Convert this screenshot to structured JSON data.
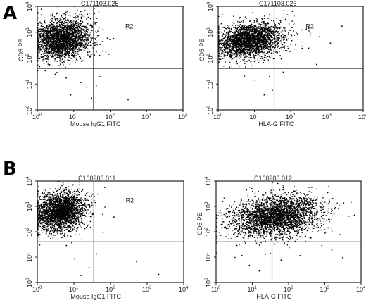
{
  "panels": [
    {
      "letter": "A"
    },
    {
      "letter": "B"
    }
  ],
  "chart_data": [
    {
      "type": "scatter",
      "panel": "A",
      "title": "C171103.025",
      "xlabel": "Mouse IgG1 FITC",
      "ylabel": "CD5 PE",
      "xscale": "log",
      "yscale": "log",
      "xlim": [
        1,
        10000
      ],
      "ylim": [
        1,
        10000
      ],
      "xticks": [
        "10",
        "10",
        "10",
        "10",
        "10"
      ],
      "yticks": [
        "10",
        "10",
        "10",
        "10",
        "10"
      ],
      "tick_exponents": [
        "0",
        "1",
        "2",
        "3",
        "4"
      ],
      "quadrant_gate": {
        "x": 35,
        "y": 40
      },
      "region_label": "R2",
      "cluster": {
        "x_center": 4.5,
        "y_center": 550,
        "x_spread_decades": 0.38,
        "y_spread_decades": 0.38,
        "points": 2600
      },
      "outliers": [
        [
          22,
          8
        ],
        [
          40,
          9
        ],
        [
          30,
          3
        ],
        [
          300,
          2.6
        ],
        [
          8,
          4
        ],
        [
          15,
          12
        ],
        [
          50,
          20
        ],
        [
          6,
          18
        ],
        [
          90,
          150
        ],
        [
          120,
          600
        ],
        [
          3,
          25
        ]
      ]
    },
    {
      "type": "scatter",
      "panel": "A",
      "title": "C171103.026",
      "xlabel": "HLA-G FITC",
      "ylabel": "CD5 PE",
      "xscale": "log",
      "yscale": "log",
      "xlim": [
        1,
        10000
      ],
      "ylim": [
        1,
        10000
      ],
      "xticks": [
        "10",
        "10",
        "10",
        "10",
        "10"
      ],
      "yticks": [
        "10",
        "10",
        "10",
        "10",
        "10"
      ],
      "tick_exponents": [
        "0",
        "1",
        "2",
        "3",
        "4"
      ],
      "quadrant_gate": {
        "x": 35,
        "y": 40
      },
      "region_label": "R2",
      "cluster": {
        "x_center": 7,
        "y_center": 500,
        "x_spread_decades": 0.45,
        "y_spread_decades": 0.33,
        "points": 2600
      },
      "outliers": [
        [
          150,
          900
        ],
        [
          300,
          1500
        ],
        [
          600,
          700
        ],
        [
          1200,
          400
        ],
        [
          2500,
          1800
        ],
        [
          80,
          300
        ],
        [
          200,
          250
        ],
        [
          30,
          6
        ],
        [
          10,
          15
        ],
        [
          18,
          4
        ],
        [
          25,
          20
        ],
        [
          500,
          60
        ],
        [
          60,
          30
        ]
      ]
    },
    {
      "type": "scatter",
      "panel": "B",
      "title": "C160903.011",
      "xlabel": "Mouse IgG1 FITC",
      "ylabel": "",
      "xscale": "log",
      "yscale": "log",
      "xlim": [
        1,
        10000
      ],
      "ylim": [
        1,
        10000
      ],
      "xticks": [
        "10",
        "10",
        "10",
        "10",
        "10"
      ],
      "yticks": [
        "10",
        "10",
        "10",
        "10",
        "10"
      ],
      "tick_exponents": [
        "0",
        "1",
        "2",
        "3",
        "4"
      ],
      "quadrant_gate": {
        "x": 35,
        "y": 40
      },
      "region_label": "R2",
      "cluster": {
        "x_center": 4,
        "y_center": 650,
        "x_spread_decades": 0.35,
        "y_spread_decades": 0.38,
        "points": 2600
      },
      "outliers": [
        [
          10,
          9
        ],
        [
          25,
          4
        ],
        [
          40,
          14
        ],
        [
          2000,
          2.2
        ],
        [
          500,
          7
        ],
        [
          15,
          2
        ],
        [
          60,
          100
        ],
        [
          120,
          400
        ],
        [
          6,
          30
        ]
      ]
    },
    {
      "type": "scatter",
      "panel": "B",
      "title": "C160903.012",
      "xlabel": "HLA-G FITC",
      "ylabel": "CD5 PE",
      "xscale": "log",
      "yscale": "log",
      "xlim": [
        1,
        10000
      ],
      "ylim": [
        1,
        10000
      ],
      "xticks": [
        "10",
        "10",
        "10",
        "10",
        "10"
      ],
      "yticks": [
        "10",
        "10",
        "10",
        "10",
        "10"
      ],
      "tick_exponents": [
        "0",
        "1",
        "2",
        "3",
        "4"
      ],
      "quadrant_gate": {
        "x": 35,
        "y": 40
      },
      "region_label": "R2",
      "cluster": {
        "x_center": 45,
        "y_center": 420,
        "x_spread_decades": 0.62,
        "y_spread_decades": 0.4,
        "points": 3000
      },
      "outliers": [
        [
          400,
          60
        ],
        [
          800,
          30
        ],
        [
          1500,
          20
        ],
        [
          3000,
          10
        ],
        [
          200,
          12
        ],
        [
          100,
          25
        ],
        [
          60,
          8
        ],
        [
          30,
          15
        ],
        [
          600,
          300
        ],
        [
          1200,
          150
        ],
        [
          2500,
          80
        ],
        [
          8,
          5
        ],
        [
          5,
          12
        ],
        [
          15,
          3
        ]
      ]
    }
  ]
}
